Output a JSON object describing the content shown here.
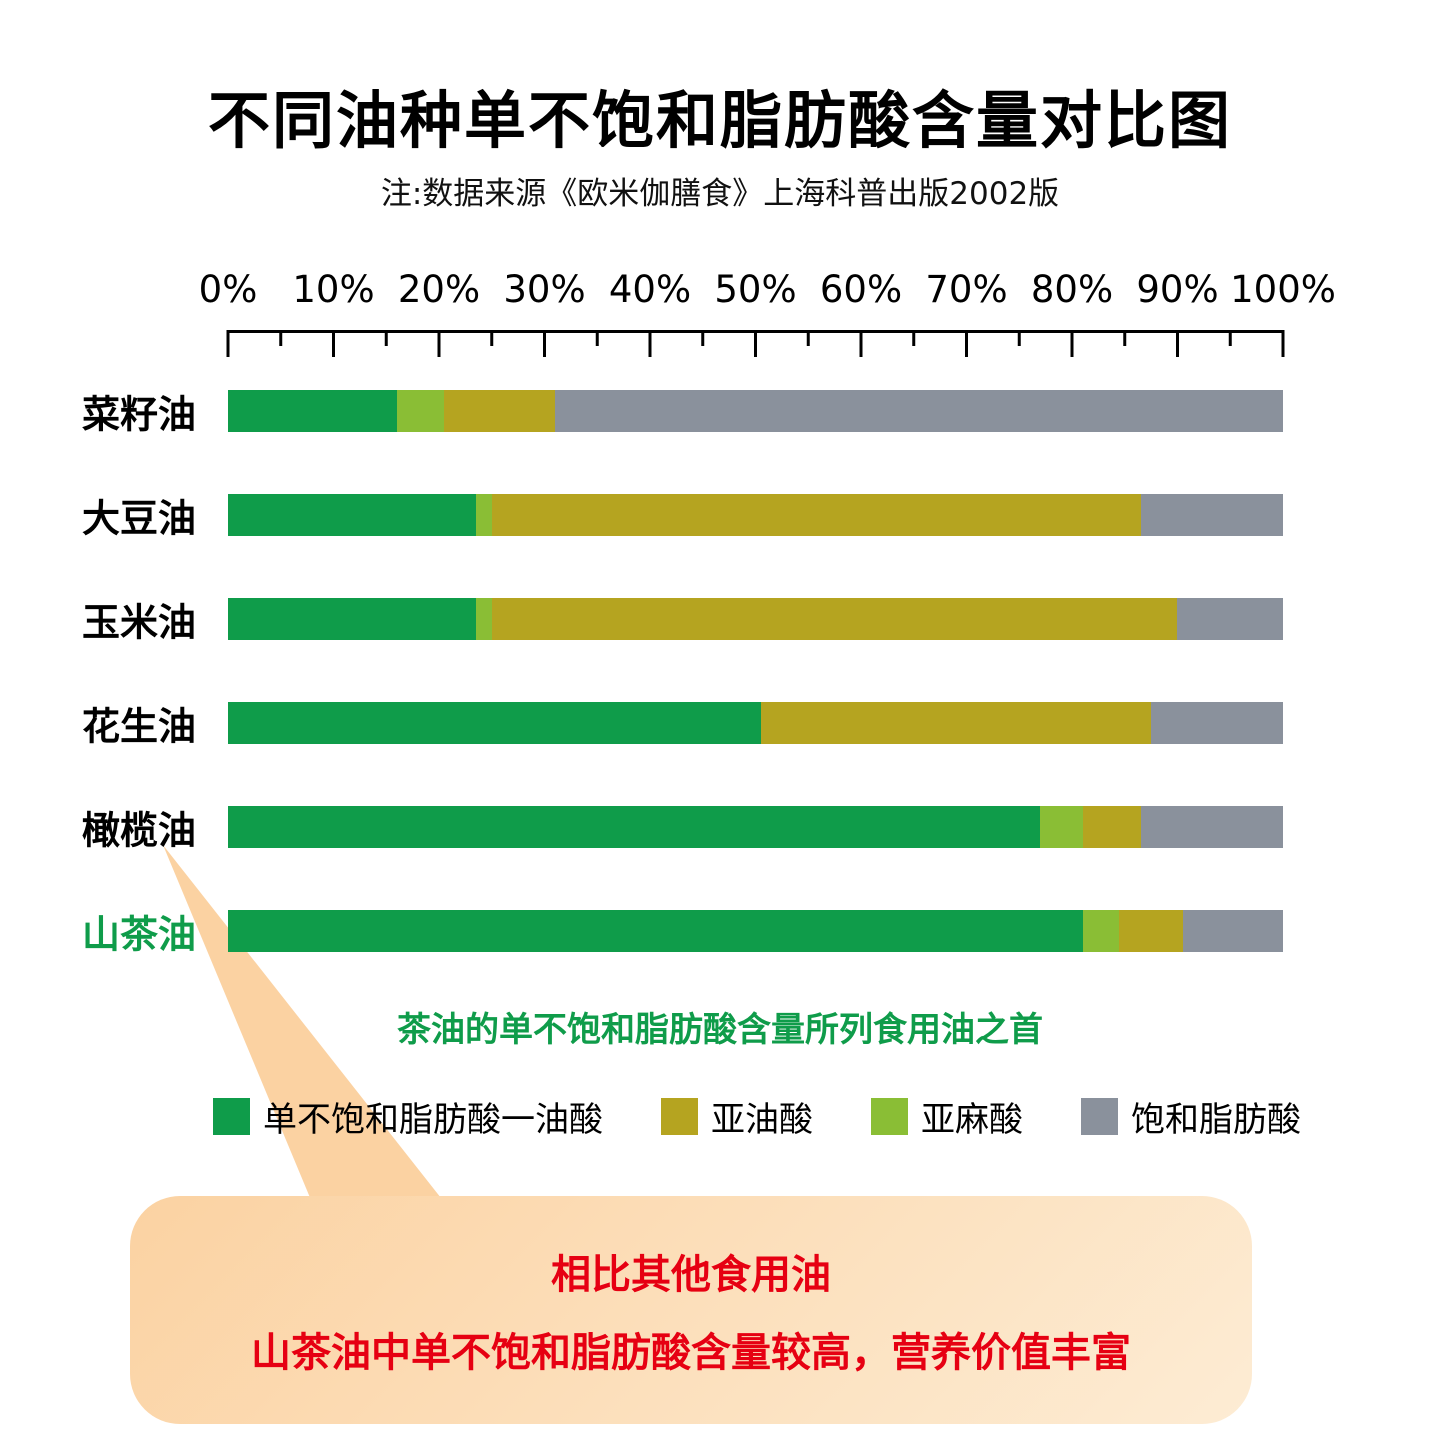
{
  "title": "不同油种单不饱和脂肪酸含量对比图",
  "subtitle": "注:数据来源《欧米伽膳食》上海科普出版2002版",
  "annotation": "茶油的单不饱和脂肪酸含量所列食用油之首",
  "callout": {
    "line1": "相比其他食用油",
    "line2": "山茶油中单不饱和脂肪酸含量较高，营养价值丰富"
  },
  "colors": {
    "highlight_text": "#0f9c4a",
    "callout_text": "#e60012",
    "callout_bg_start": "#fbd2a2",
    "callout_bg_end": "#fdecd4"
  },
  "legend_order": [
    "单不饱和脂肪酸一油酸",
    "亚油酸",
    "亚麻酸",
    "饱和脂肪酸"
  ],
  "chart_data": {
    "type": "bar",
    "orientation": "horizontal",
    "stacked": true,
    "grid": false,
    "legend_position": "bottom",
    "xlim": [
      0,
      100
    ],
    "x_tick_labels": [
      "0%",
      "10%",
      "20%",
      "30%",
      "40%",
      "50%",
      "60%",
      "70%",
      "80%",
      "90%",
      "100%"
    ],
    "categories": [
      "菜籽油",
      "大豆油",
      "玉米油",
      "花生油",
      "橄榄油",
      "山茶油"
    ],
    "highlight_category": "山茶油",
    "series": [
      {
        "name": "单不饱和脂肪酸一油酸",
        "color": "#0f9c4a",
        "values": [
          16,
          23.5,
          23.5,
          50.5,
          77,
          81
        ]
      },
      {
        "name": "亚麻酸",
        "color": "#8abe35",
        "values": [
          4.5,
          1.5,
          1.5,
          0,
          4,
          3.5
        ]
      },
      {
        "name": "亚油酸",
        "color": "#b5a420",
        "values": [
          10.5,
          61.5,
          65,
          37,
          5.5,
          6
        ]
      },
      {
        "name": "饱和脂肪酸",
        "color": "#8a919c",
        "values": [
          69,
          13.5,
          10,
          12.5,
          13.5,
          9.5
        ]
      }
    ],
    "values_unit": "%"
  }
}
